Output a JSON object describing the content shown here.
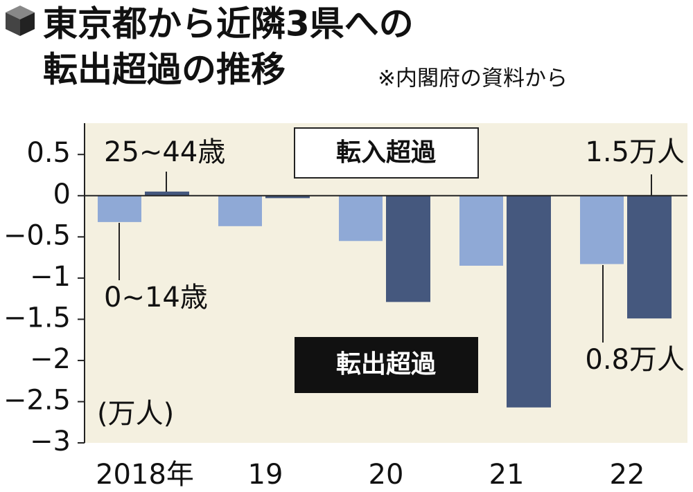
{
  "chart_data": {
    "type": "bar",
    "title": [
      "東京都から近隣3県への",
      "転出超過の推移"
    ],
    "source": "※内閣府の資料から",
    "unit_label": "(万人)",
    "categories": [
      "2018年",
      "19",
      "20",
      "21",
      "22"
    ],
    "series": [
      {
        "name": "0~14歳",
        "color": "#8fa9d6",
        "values": [
          -0.32,
          -0.37,
          -0.55,
          -0.85,
          -0.83
        ]
      },
      {
        "name": "25~44歳",
        "color": "#45587e",
        "values": [
          0.05,
          -0.03,
          -1.29,
          -2.57,
          -1.49
        ]
      }
    ],
    "ylim": [
      -3,
      0.88
    ],
    "yticks": [
      0.5,
      0,
      {
        "value": -0.5,
        "label": "−0.5"
      },
      {
        "value": -1,
        "label": "−1"
      },
      {
        "value": -1.5,
        "label": "−1.5"
      },
      {
        "value": -2,
        "label": "−2"
      },
      {
        "value": -2.5,
        "label": "−2.5"
      },
      {
        "value": -3,
        "label": "−3"
      }
    ],
    "annotations": [
      "転入超過",
      "転出超過",
      "1.5万人",
      "0.8万人"
    ],
    "plot_background": "#f4f0e0"
  }
}
